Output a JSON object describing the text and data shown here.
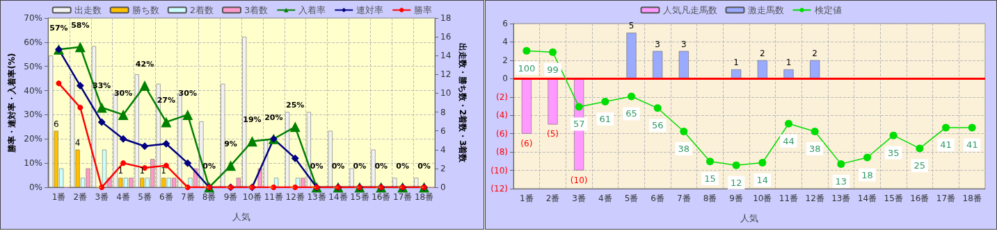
{
  "chart_data": [
    {
      "type": "bar",
      "xlabel": "人気",
      "ylabel": "勝率・連対率・入着率(%)",
      "y2label": "出走数・勝ち数・2着数・3着数",
      "categories": [
        "1番",
        "2番",
        "3番",
        "4番",
        "5番",
        "6番",
        "7番",
        "8番",
        "9番",
        "10番",
        "11番",
        "12番",
        "13番",
        "14番",
        "15番",
        "16番",
        "17番",
        "18番"
      ],
      "ylim": [
        0,
        70
      ],
      "yticks": [
        {
          "value": 0,
          "label": "0%"
        },
        {
          "value": 10,
          "label": "10%"
        },
        {
          "value": 20,
          "label": "20%"
        },
        {
          "value": 30,
          "label": "30%"
        },
        {
          "value": 40,
          "label": "40%"
        },
        {
          "value": 50,
          "label": "50%"
        },
        {
          "value": 60,
          "label": "60%"
        },
        {
          "value": 70,
          "label": "70%"
        }
      ],
      "y2lim": [
        0,
        18
      ],
      "y2ticks": [
        0,
        2,
        4,
        6,
        8,
        10,
        12,
        14,
        16,
        18
      ],
      "grid": true,
      "legend": "top",
      "series": [
        {
          "name": "出走数",
          "color": "#f2f2f2",
          "axis": "y2",
          "values": [
            14,
            12,
            15,
            10,
            12,
            11,
            10,
            7,
            11,
            16,
            5,
            8,
            8,
            6,
            2,
            4,
            1,
            1
          ]
        },
        {
          "name": "勝ち数",
          "color": "#ffc000",
          "axis": "y2",
          "values": [
            6,
            4,
            0,
            1,
            1,
            1,
            0,
            0,
            0,
            0,
            0,
            0,
            0,
            0,
            0,
            0,
            0,
            0
          ],
          "value_labels": [
            "6",
            "4",
            null,
            "1",
            "1",
            "1",
            null,
            null,
            null,
            null,
            null,
            null,
            null,
            null,
            null,
            null,
            null,
            null
          ]
        },
        {
          "name": "2着数",
          "color": "#ccffff",
          "axis": "y2",
          "values": [
            2,
            1,
            4,
            1,
            1,
            1,
            1,
            0,
            0,
            0,
            1,
            1,
            0,
            0,
            0,
            0,
            0,
            0
          ]
        },
        {
          "name": "3着数",
          "color": "#ff99cc",
          "axis": "y2",
          "values": [
            0,
            2,
            1,
            1,
            3,
            1,
            2,
            0,
            1,
            2,
            0,
            1,
            0,
            0,
            0,
            0,
            0,
            0
          ]
        },
        {
          "name": "入着率",
          "type": "line",
          "color": "#008000",
          "marker": "triangle",
          "values": [
            57,
            58,
            33,
            30,
            42,
            27,
            30,
            0,
            9,
            19,
            20,
            25,
            0,
            0,
            0,
            0,
            0,
            0
          ],
          "value_labels": [
            "57%",
            "58%",
            "33%",
            "30%",
            "42%",
            "27%",
            "30%",
            "0%",
            "9%",
            "19%",
            "20%",
            "25%",
            "0%",
            "0%",
            "0%",
            "0%",
            "0%",
            "0%"
          ]
        },
        {
          "name": "連対率",
          "type": "line",
          "color": "#000080",
          "marker": "diamond",
          "values": [
            57,
            42,
            27,
            20,
            17,
            18,
            10,
            0,
            0,
            0,
            20,
            12,
            0,
            0,
            0,
            0,
            0,
            0
          ]
        },
        {
          "name": "勝率",
          "type": "line",
          "color": "#ff0000",
          "marker": "circle",
          "values": [
            43,
            33,
            0,
            10,
            8,
            9,
            0,
            0,
            0,
            0,
            0,
            0,
            0,
            0,
            0,
            0,
            0,
            0
          ]
        }
      ]
    },
    {
      "type": "bar",
      "xlabel": "人気",
      "categories": [
        "1番",
        "2番",
        "3番",
        "4番",
        "5番",
        "6番",
        "7番",
        "8番",
        "9番",
        "10番",
        "11番",
        "12番",
        "13番",
        "14番",
        "15番",
        "16番",
        "17番",
        "18番"
      ],
      "ylim": [
        -12,
        6
      ],
      "yticks": [
        {
          "value": -12,
          "label": "(12)"
        },
        {
          "value": -10,
          "label": "(10)"
        },
        {
          "value": -8,
          "label": "(8)"
        },
        {
          "value": -6,
          "label": "(6)"
        },
        {
          "value": -4,
          "label": "(4)"
        },
        {
          "value": -2,
          "label": "(2)"
        },
        0,
        2,
        4,
        6
      ],
      "y2lim": [
        -6,
        121
      ],
      "grid": true,
      "legend": "top",
      "stacked": true,
      "ref_lines": [
        {
          "axis": "y",
          "value": 0,
          "color": "#ff0000"
        }
      ],
      "series": [
        {
          "name": "人気凡走馬数",
          "color": "#ff99ff",
          "values": [
            -6,
            -5,
            -10,
            null,
            null,
            null,
            null,
            null,
            null,
            null,
            null,
            null,
            null,
            null,
            null,
            null,
            null,
            null
          ],
          "value_labels": [
            "(6)",
            "(5)",
            "(10)",
            null,
            null,
            null,
            null,
            null,
            null,
            null,
            null,
            null,
            null,
            null,
            null,
            null,
            null,
            null
          ]
        },
        {
          "name": "激走馬数",
          "color": "#99aaff",
          "values": [
            null,
            null,
            null,
            null,
            5,
            3,
            3,
            null,
            1,
            2,
            1,
            2,
            null,
            null,
            null,
            null,
            null,
            null
          ],
          "value_labels": [
            null,
            null,
            null,
            null,
            "5",
            "3",
            "3",
            null,
            "1",
            "2",
            "1",
            "2",
            null,
            null,
            null,
            null,
            null,
            null
          ]
        },
        {
          "name": "検定値",
          "type": "line",
          "color": "#00dd00",
          "marker": "circle",
          "axis": "y2",
          "values": [
            100,
            99,
            57,
            61,
            65,
            56,
            38,
            15,
            12,
            14,
            44,
            38,
            13,
            18,
            35,
            25,
            41,
            41
          ],
          "data_labels": true
        }
      ]
    }
  ]
}
